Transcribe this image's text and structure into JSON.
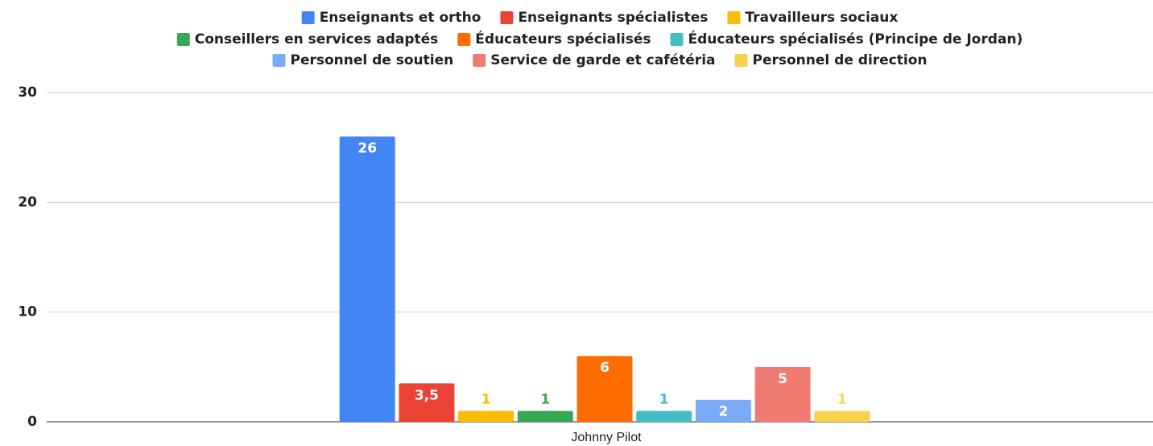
{
  "chart_data": {
    "type": "bar",
    "categories": [
      "Johnny Pilot"
    ],
    "series": [
      {
        "name": "Enseignants et ortho",
        "color": "#4285f4",
        "values": [
          26
        ]
      },
      {
        "name": "Enseignants spécialistes",
        "color": "#ea4335",
        "values": [
          3.5
        ],
        "value_labels": [
          "3,5"
        ]
      },
      {
        "name": "Travailleurs sociaux",
        "color": "#fbbc04",
        "values": [
          1
        ]
      },
      {
        "name": "Conseillers en services adaptés",
        "color": "#34a853",
        "values": [
          1
        ]
      },
      {
        "name": "Éducateurs spécialisés",
        "color": "#ff6d01",
        "values": [
          6
        ]
      },
      {
        "name": "Éducateurs spécialisés (Principe de Jordan)",
        "color": "#46bdc6",
        "values": [
          1
        ]
      },
      {
        "name": "Personnel de soutien",
        "color": "#7baaf7",
        "values": [
          2
        ]
      },
      {
        "name": "Service de garde et cafétéria",
        "color": "#f07b72",
        "values": [
          5
        ]
      },
      {
        "name": "Personnel de direction",
        "color": "#fcd04f",
        "values": [
          1
        ]
      }
    ],
    "ylim": [
      0,
      30
    ],
    "yticks": [
      0,
      10,
      20,
      30
    ],
    "grid": true,
    "legend": "top"
  }
}
